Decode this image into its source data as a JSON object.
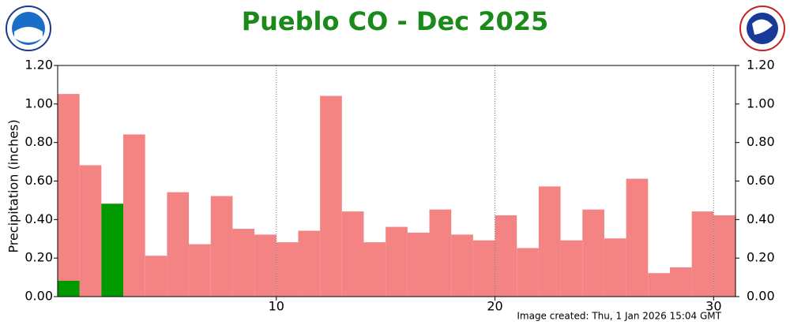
{
  "chart_data": {
    "type": "bar",
    "title": "Pueblo CO - Dec 2025",
    "y_label": "Precipitation (inches)",
    "footer": "Image created: Thu, 1 Jan 2026 15:04 GMT",
    "x": [
      1,
      2,
      3,
      4,
      5,
      6,
      7,
      8,
      9,
      10,
      11,
      12,
      13,
      14,
      15,
      16,
      17,
      18,
      19,
      20,
      21,
      22,
      23,
      24,
      25,
      26,
      27,
      28,
      29,
      30,
      31
    ],
    "series": [
      {
        "color": "#f48484",
        "values": [
          1.05,
          0.68,
          0.48,
          0.84,
          0.21,
          0.54,
          0.27,
          0.52,
          0.35,
          0.32,
          0.28,
          0.34,
          1.04,
          0.44,
          0.28,
          0.36,
          0.33,
          0.45,
          0.32,
          0.29,
          0.42,
          0.25,
          0.57,
          0.29,
          0.45,
          0.3,
          0.61,
          0.12,
          0.15,
          0.44,
          0.42
        ]
      },
      {
        "color": "#009900",
        "values": [
          0.08,
          0,
          0.48,
          0,
          0,
          0,
          0,
          0,
          0,
          0,
          0,
          0,
          0,
          0,
          0,
          0,
          0,
          0,
          0,
          0,
          0,
          0,
          0,
          0,
          0,
          0,
          0,
          0,
          0,
          0,
          0
        ]
      }
    ],
    "xlim": [
      0,
      31
    ],
    "xticks": [
      10,
      20,
      30
    ],
    "ylim": [
      0,
      1.2
    ],
    "yticks": [
      {
        "value": 0,
        "label": "0.00"
      },
      {
        "value": 0.2,
        "label": "0.20"
      },
      {
        "value": 0.4,
        "label": "0.40"
      },
      {
        "value": 0.6,
        "label": "0.60"
      },
      {
        "value": 0.8,
        "label": "0.80"
      },
      {
        "value": 1.0,
        "label": "1.00"
      },
      {
        "value": 1.2,
        "label": "1.20"
      }
    ],
    "grid": "x"
  }
}
